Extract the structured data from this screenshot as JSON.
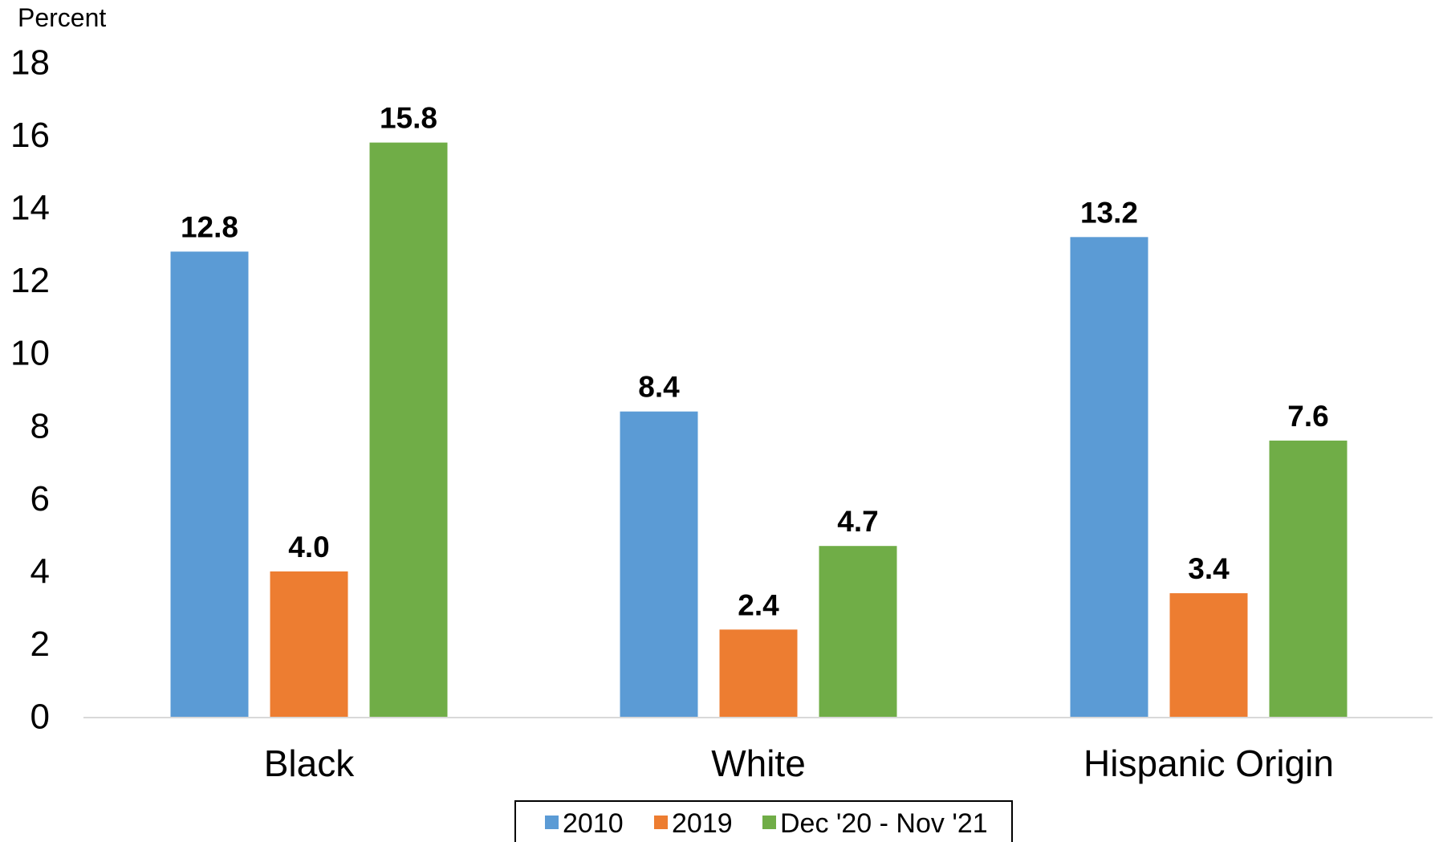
{
  "chart_data": {
    "type": "bar",
    "title": "",
    "xlabel": "",
    "ylabel": "Percent",
    "categories": [
      "Black",
      "White",
      "Hispanic Origin"
    ],
    "series": [
      {
        "name": "2010",
        "values": [
          12.8,
          8.4,
          13.2
        ],
        "color": "#5B9BD5"
      },
      {
        "name": "2019",
        "values": [
          4.0,
          2.4,
          3.4
        ],
        "color": "#ED7D31"
      },
      {
        "name": "Dec '20 - Nov '21",
        "values": [
          15.8,
          4.7,
          7.6
        ],
        "color": "#70AD47"
      }
    ],
    "ylim": [
      0,
      18
    ],
    "yticks": [
      0,
      2,
      4,
      6,
      8,
      10,
      12,
      14,
      16,
      18
    ],
    "data_label_decimals": 1,
    "grid": false,
    "legend_position": "bottom-center"
  }
}
